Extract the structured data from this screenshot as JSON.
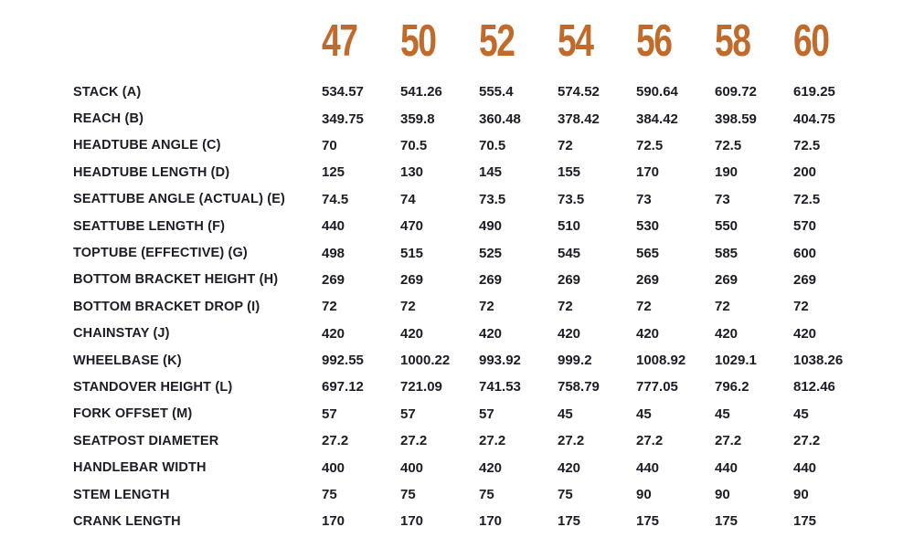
{
  "colors": {
    "accent_orange": "#C06A2C",
    "text_dark": "#1C1C26",
    "background": "#FFFFFF"
  },
  "chart_data": {
    "type": "table",
    "columns": [
      "47",
      "50",
      "52",
      "54",
      "56",
      "58",
      "60"
    ],
    "rows": [
      {
        "label": "STACK (A)",
        "values": [
          "534.57",
          "541.26",
          "555.4",
          "574.52",
          "590.64",
          "609.72",
          "619.25"
        ]
      },
      {
        "label": "REACH (B)",
        "values": [
          "349.75",
          "359.8",
          "360.48",
          "378.42",
          "384.42",
          "398.59",
          "404.75"
        ]
      },
      {
        "label": "HEADTUBE ANGLE (C)",
        "values": [
          "70",
          "70.5",
          "70.5",
          "72",
          "72.5",
          "72.5",
          "72.5"
        ]
      },
      {
        "label": "HEADTUBE LENGTH (D)",
        "values": [
          "125",
          "130",
          "145",
          "155",
          "170",
          "190",
          "200"
        ]
      },
      {
        "label": "SEATTUBE ANGLE (ACTUAL) (E)",
        "values": [
          "74.5",
          "74",
          "73.5",
          "73.5",
          "73",
          "73",
          "72.5"
        ]
      },
      {
        "label": "SEATTUBE LENGTH (F)",
        "values": [
          "440",
          "470",
          "490",
          "510",
          "530",
          "550",
          "570"
        ]
      },
      {
        "label": "TOPTUBE (EFFECTIVE) (G)",
        "values": [
          "498",
          "515",
          "525",
          "545",
          "565",
          "585",
          "600"
        ]
      },
      {
        "label": "BOTTOM BRACKET HEIGHT (H)",
        "values": [
          "269",
          "269",
          "269",
          "269",
          "269",
          "269",
          "269"
        ]
      },
      {
        "label": "BOTTOM BRACKET DROP (I)",
        "values": [
          "72",
          "72",
          "72",
          "72",
          "72",
          "72",
          "72"
        ]
      },
      {
        "label": "CHAINSTAY (J)",
        "values": [
          "420",
          "420",
          "420",
          "420",
          "420",
          "420",
          "420"
        ]
      },
      {
        "label": "WHEELBASE (K)",
        "values": [
          "992.55",
          "1000.22",
          "993.92",
          "999.2",
          "1008.92",
          "1029.1",
          "1038.26"
        ]
      },
      {
        "label": "STANDOVER HEIGHT (L)",
        "values": [
          "697.12",
          "721.09",
          "741.53",
          "758.79",
          "777.05",
          "796.2",
          "812.46"
        ]
      },
      {
        "label": "FORK OFFSET (M)",
        "values": [
          "57",
          "57",
          "57",
          "45",
          "45",
          "45",
          "45"
        ]
      },
      {
        "label": "SEATPOST DIAMETER",
        "values": [
          "27.2",
          "27.2",
          "27.2",
          "27.2",
          "27.2",
          "27.2",
          "27.2"
        ]
      },
      {
        "label": "HANDLEBAR WIDTH",
        "values": [
          "400",
          "400",
          "420",
          "420",
          "440",
          "440",
          "440"
        ]
      },
      {
        "label": "STEM LENGTH",
        "values": [
          "75",
          "75",
          "75",
          "75",
          "90",
          "90",
          "90"
        ]
      },
      {
        "label": "CRANK LENGTH",
        "values": [
          "170",
          "170",
          "170",
          "175",
          "175",
          "175",
          "175"
        ]
      }
    ]
  }
}
